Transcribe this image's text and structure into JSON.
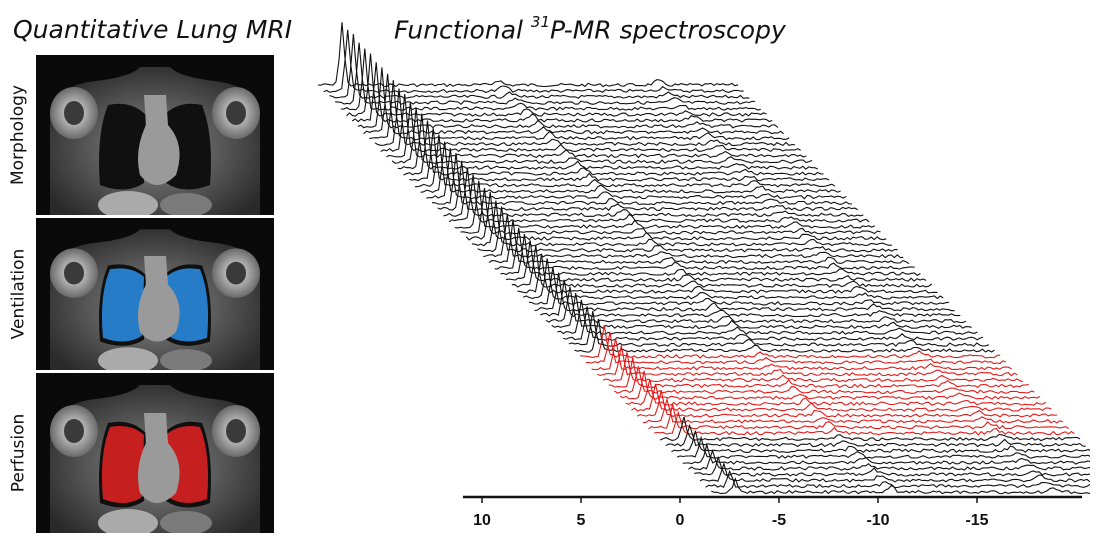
{
  "titles": {
    "left": "Quantitative Lung MRI",
    "right_prefix": "Functional ",
    "right_sup": "31",
    "right_suffix": "P-MR spectroscopy"
  },
  "panels": [
    {
      "label": "Morphology",
      "overlay": "none"
    },
    {
      "label": "Ventilation",
      "overlay": "#2a8fe6"
    },
    {
      "label": "Perfusion",
      "overlay": "#e52222"
    }
  ],
  "spectra": {
    "axis_ticks": [
      "10",
      "5",
      "0",
      "-5",
      "-10",
      "-15"
    ],
    "trace_count": 70,
    "highlight_range": [
      46,
      59
    ],
    "trace_color": "#111111",
    "highlight_color": "#e21b1b"
  }
}
